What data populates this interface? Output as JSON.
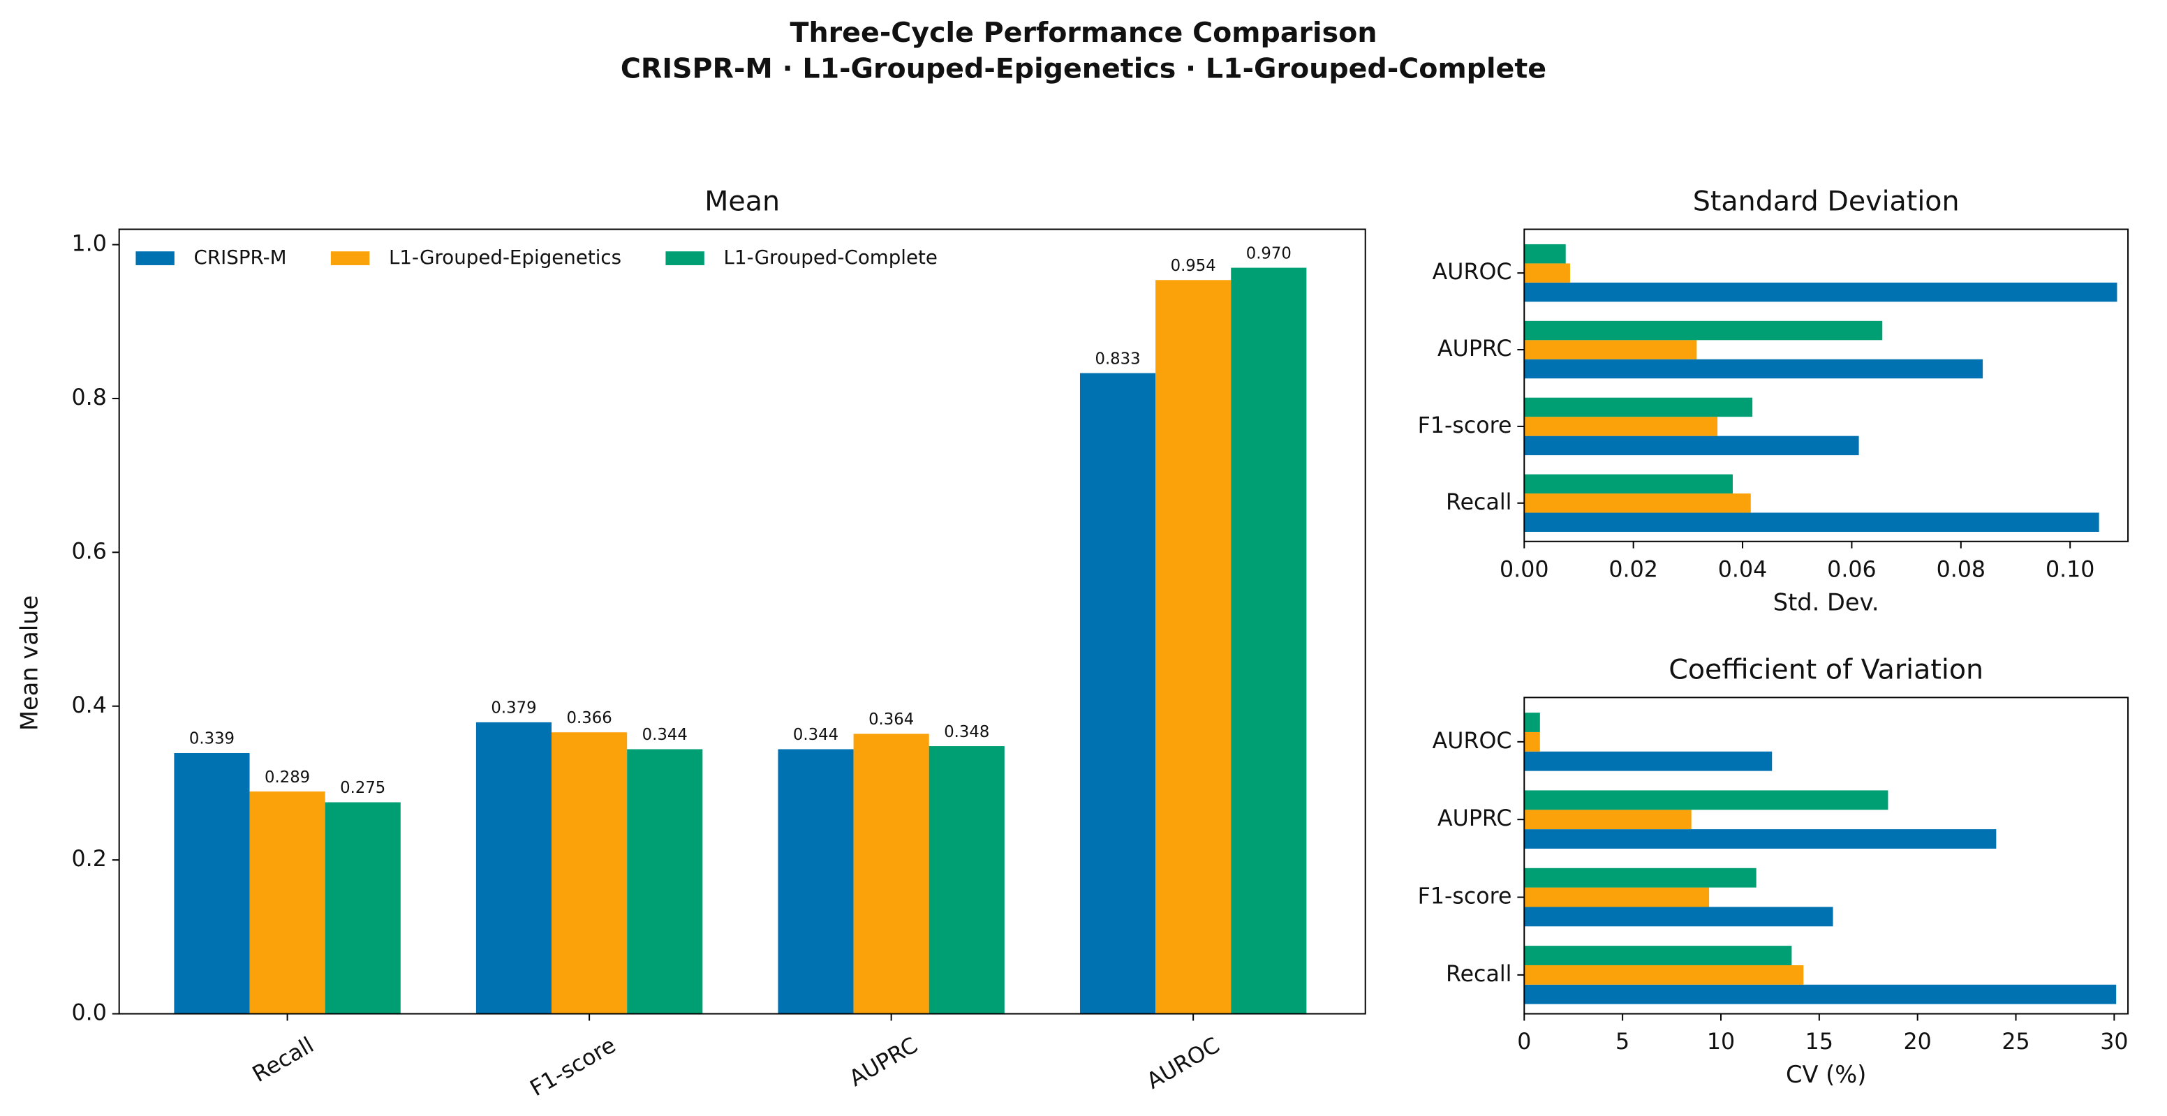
{
  "title": "Three-Cycle Performance Comparison",
  "subtitle": "CRISPR-M · L1-Grouped-Epigenetics · L1-Grouped-Complete",
  "chart_data": [
    {
      "type": "bar",
      "title": "Mean",
      "ylabel": "Mean value",
      "categories": [
        "Recall",
        "F1-score",
        "AUPRC",
        "AUROC"
      ],
      "series": [
        {
          "name": "CRISPR-M",
          "color": "#0072b2",
          "values": [
            0.339,
            0.379,
            0.344,
            0.833
          ],
          "value_labels": [
            "0.339",
            "0.379",
            "0.344",
            "0.833"
          ]
        },
        {
          "name": "L1-Grouped-Epigenetics",
          "color": "#fba20a",
          "values": [
            0.289,
            0.366,
            0.364,
            0.954
          ],
          "value_labels": [
            "0.289",
            "0.366",
            "0.364",
            "0.954"
          ]
        },
        {
          "name": "L1-Grouped-Complete",
          "color": "#009e73",
          "values": [
            0.275,
            0.344,
            0.348,
            0.97
          ],
          "value_labels": [
            "0.275",
            "0.344",
            "0.348",
            "0.970"
          ]
        }
      ],
      "ylim": [
        0,
        1.02
      ],
      "yticks": [
        {
          "value": 0,
          "label": "0.0"
        },
        0.2,
        0.4,
        0.6,
        0.8,
        {
          "value": 1,
          "label": "1.0"
        }
      ],
      "legend": "upper left",
      "grid": false
    },
    {
      "type": "barh",
      "title": "Standard Deviation",
      "xlabel": "Std. Dev.",
      "categories": [
        "Recall",
        "F1-score",
        "AUPRC",
        "AUROC"
      ],
      "series": [
        {
          "color": "#0072b2",
          "values": [
            0.1053,
            0.0613,
            0.084,
            0.1086
          ]
        },
        {
          "color": "#fba20a",
          "values": [
            0.0415,
            0.0354,
            0.0316,
            0.0084
          ]
        },
        {
          "color": "#009e73",
          "values": [
            0.0382,
            0.0418,
            0.0656,
            0.0076
          ]
        }
      ],
      "xlim": [
        0,
        0.1106
      ],
      "xticks": [
        {
          "value": 0,
          "label": "0.00"
        },
        0.02,
        0.04,
        0.06,
        0.08,
        {
          "value": 0.1,
          "label": "0.10"
        }
      ],
      "grid": false
    },
    {
      "type": "barh",
      "title": "Coefficient of Variation",
      "xlabel": "CV (%)",
      "categories": [
        "Recall",
        "F1-score",
        "AUPRC",
        "AUROC"
      ],
      "series": [
        {
          "color": "#0072b2",
          "values": [
            30.1,
            15.7,
            24.0,
            12.6
          ]
        },
        {
          "color": "#fba20a",
          "values": [
            14.2,
            9.4,
            8.5,
            0.8
          ]
        },
        {
          "color": "#009e73",
          "values": [
            13.6,
            11.8,
            18.5,
            0.8
          ]
        }
      ],
      "xlim": [
        0,
        30.7
      ],
      "xticks": [
        0,
        5,
        10,
        15,
        20,
        25,
        30
      ],
      "grid": false
    }
  ]
}
